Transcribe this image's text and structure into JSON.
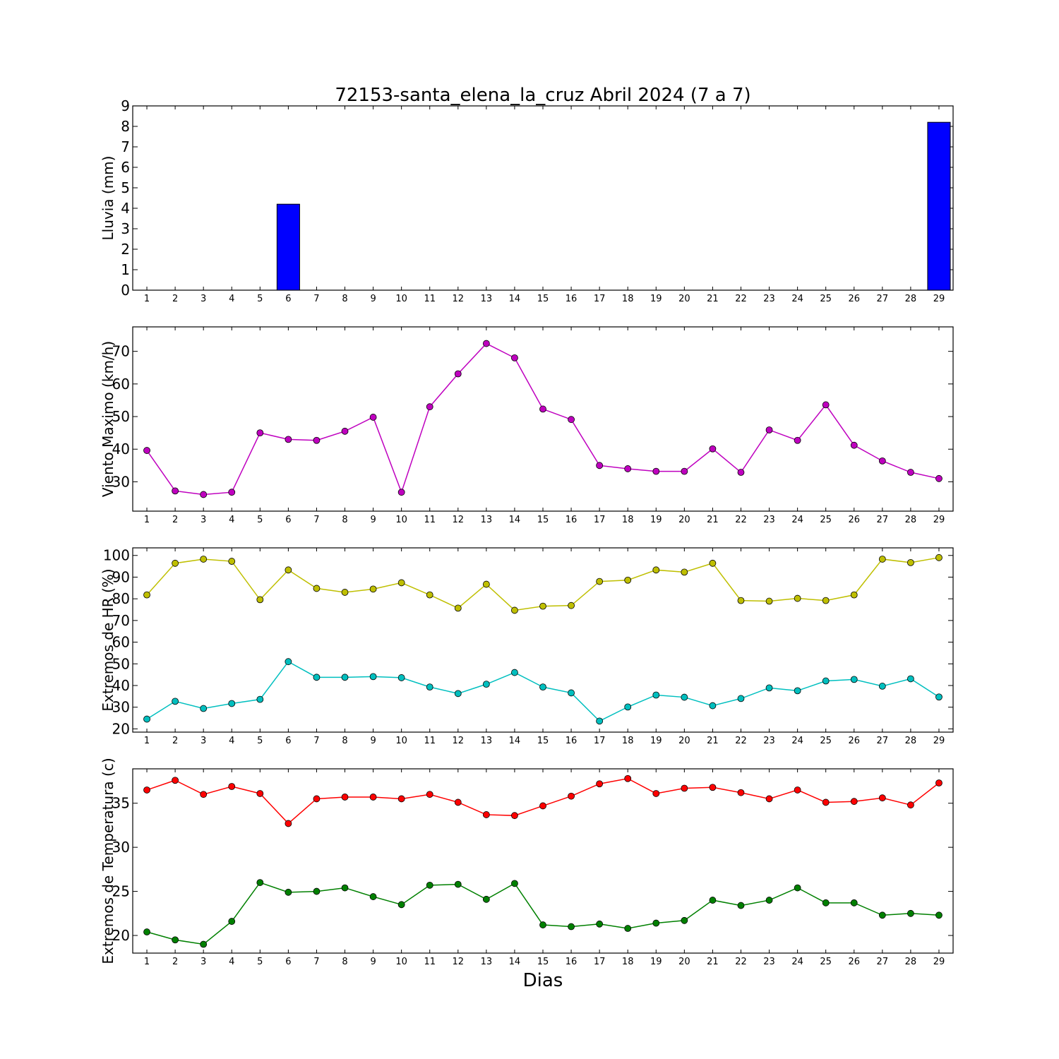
{
  "figure": {
    "title": "72153-santa_elena_la_cruz Abril 2024  (7 a 7)",
    "xlabel": "Dias"
  },
  "chart_data": [
    {
      "type": "bar",
      "ylabel": "Lluvia (mm)",
      "ylim": [
        0,
        9
      ],
      "yticks": [
        0,
        1,
        2,
        3,
        4,
        5,
        6,
        7,
        8,
        9
      ],
      "x": [
        1,
        2,
        3,
        4,
        5,
        6,
        7,
        8,
        9,
        10,
        11,
        12,
        13,
        14,
        15,
        16,
        17,
        18,
        19,
        20,
        21,
        22,
        23,
        24,
        25,
        26,
        27,
        28,
        29
      ],
      "values": [
        0,
        0,
        0,
        0,
        0,
        4.2,
        0,
        0,
        0,
        0,
        0,
        0,
        0,
        0,
        0,
        0,
        0,
        0,
        0,
        0,
        0,
        0,
        0,
        0,
        0,
        0,
        0,
        0,
        8.2
      ],
      "color": "#0000ff",
      "grid": false
    },
    {
      "type": "line",
      "ylabel": "Viento Maximo (km/h)",
      "ylim": [
        21,
        77.5
      ],
      "yticks": [
        30,
        40,
        50,
        60,
        70
      ],
      "x": [
        1,
        2,
        3,
        4,
        5,
        6,
        7,
        8,
        9,
        10,
        11,
        12,
        13,
        14,
        15,
        16,
        17,
        18,
        19,
        20,
        21,
        22,
        23,
        24,
        25,
        26,
        27,
        28,
        29
      ],
      "series": [
        {
          "values": [
            39.6,
            27.2,
            26.1,
            26.8,
            45.0,
            43.0,
            42.7,
            45.5,
            49.8,
            26.8,
            53.0,
            63.1,
            72.4,
            68.0,
            52.3,
            49.1,
            35.0,
            34.0,
            33.2,
            33.2,
            40.1,
            32.9,
            45.9,
            42.7,
            53.6,
            41.2,
            36.4,
            32.9,
            31.0
          ],
          "color": "#bf00bf"
        }
      ],
      "grid": false
    },
    {
      "type": "line",
      "ylabel": "Extremos de HR (%)",
      "ylim": [
        18.5,
        103.5
      ],
      "yticks": [
        20,
        30,
        40,
        50,
        60,
        70,
        80,
        90,
        100
      ],
      "x": [
        1,
        2,
        3,
        4,
        5,
        6,
        7,
        8,
        9,
        10,
        11,
        12,
        13,
        14,
        15,
        16,
        17,
        18,
        19,
        20,
        21,
        22,
        23,
        24,
        25,
        26,
        27,
        28,
        29
      ],
      "series": [
        {
          "values": [
            81.8,
            96.4,
            98.3,
            97.3,
            79.6,
            93.3,
            84.8,
            83.0,
            84.5,
            87.4,
            81.8,
            75.7,
            86.7,
            74.7,
            76.6,
            76.9,
            88.0,
            88.6,
            93.3,
            92.3,
            96.4,
            79.2,
            78.9,
            80.2,
            79.2,
            81.8,
            98.3,
            96.7,
            99.0
          ],
          "color": "#bfbf00"
        },
        {
          "values": [
            24.5,
            32.7,
            29.4,
            31.7,
            33.6,
            51.0,
            43.8,
            43.8,
            44.1,
            43.6,
            39.3,
            36.3,
            40.6,
            46.0,
            39.3,
            36.6,
            23.6,
            30.1,
            35.6,
            34.6,
            30.7,
            34.0,
            38.9,
            37.6,
            42.1,
            42.8,
            39.7,
            43.1,
            34.7
          ],
          "color": "#00bfbf"
        }
      ],
      "grid": false
    },
    {
      "type": "line",
      "ylabel": "Extremos de Temperatura (c)",
      "ylim": [
        18,
        38.9
      ],
      "yticks": [
        20,
        25,
        30,
        35
      ],
      "x": [
        1,
        2,
        3,
        4,
        5,
        6,
        7,
        8,
        9,
        10,
        11,
        12,
        13,
        14,
        15,
        16,
        17,
        18,
        19,
        20,
        21,
        22,
        23,
        24,
        25,
        26,
        27,
        28,
        29
      ],
      "series": [
        {
          "values": [
            36.5,
            37.6,
            36.0,
            36.9,
            36.1,
            32.7,
            35.5,
            35.7,
            35.7,
            35.5,
            36.0,
            35.1,
            33.7,
            33.6,
            34.7,
            35.8,
            37.2,
            37.8,
            36.1,
            36.7,
            36.8,
            36.2,
            35.5,
            36.5,
            35.1,
            35.2,
            35.6,
            34.8,
            37.3
          ],
          "color": "#ff0000"
        },
        {
          "values": [
            20.4,
            19.5,
            19.0,
            21.6,
            26.0,
            24.9,
            25.0,
            25.4,
            24.4,
            23.5,
            25.7,
            25.8,
            24.1,
            25.9,
            21.2,
            21.0,
            21.3,
            20.8,
            21.4,
            21.7,
            24.0,
            23.4,
            24.0,
            25.4,
            23.7,
            23.7,
            22.3,
            22.5,
            22.3
          ],
          "color": "#008000"
        }
      ],
      "grid": false
    }
  ]
}
